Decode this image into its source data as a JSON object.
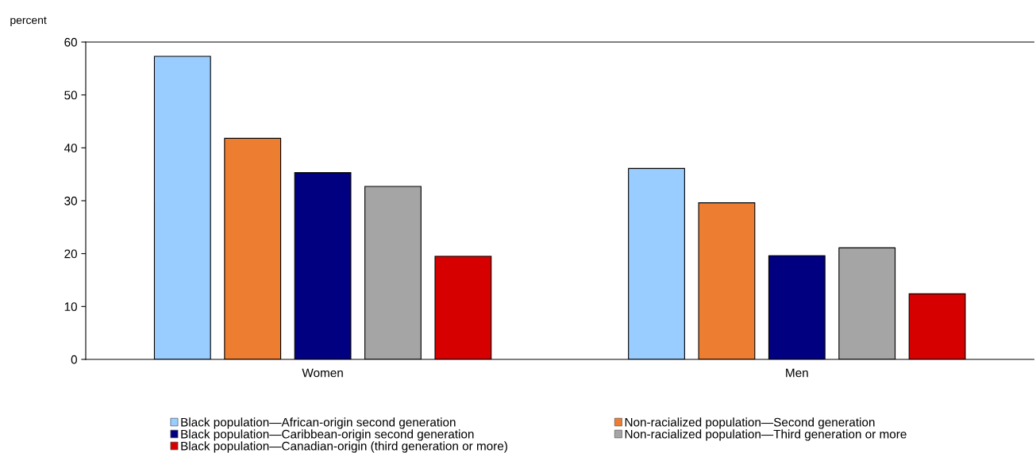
{
  "chart_data": {
    "type": "bar",
    "ylabel": "percent",
    "categories": [
      "Women",
      "Men"
    ],
    "series": [
      {
        "name": "Black population—African-origin second generation",
        "color": "#99ccff",
        "values": [
          57.3,
          36.1
        ]
      },
      {
        "name": "Non-racialized population—Second generation",
        "color": "#ed7d31",
        "values": [
          41.8,
          29.6
        ]
      },
      {
        "name": "Black population—Caribbean-origin second generation",
        "color": "#000080",
        "values": [
          35.3,
          19.6
        ]
      },
      {
        "name": "Non-racialized population—Third generation or more",
        "color": "#a5a5a5",
        "values": [
          32.7,
          21.1
        ]
      },
      {
        "name": "Black population—Canadian-origin (third generation or more)",
        "color": "#d60000",
        "values": [
          19.5,
          12.4
        ]
      }
    ],
    "ylim": [
      0,
      60
    ],
    "yticks": [
      0,
      10,
      20,
      30,
      40,
      50,
      60
    ],
    "grid": false,
    "legend": "bottom"
  }
}
